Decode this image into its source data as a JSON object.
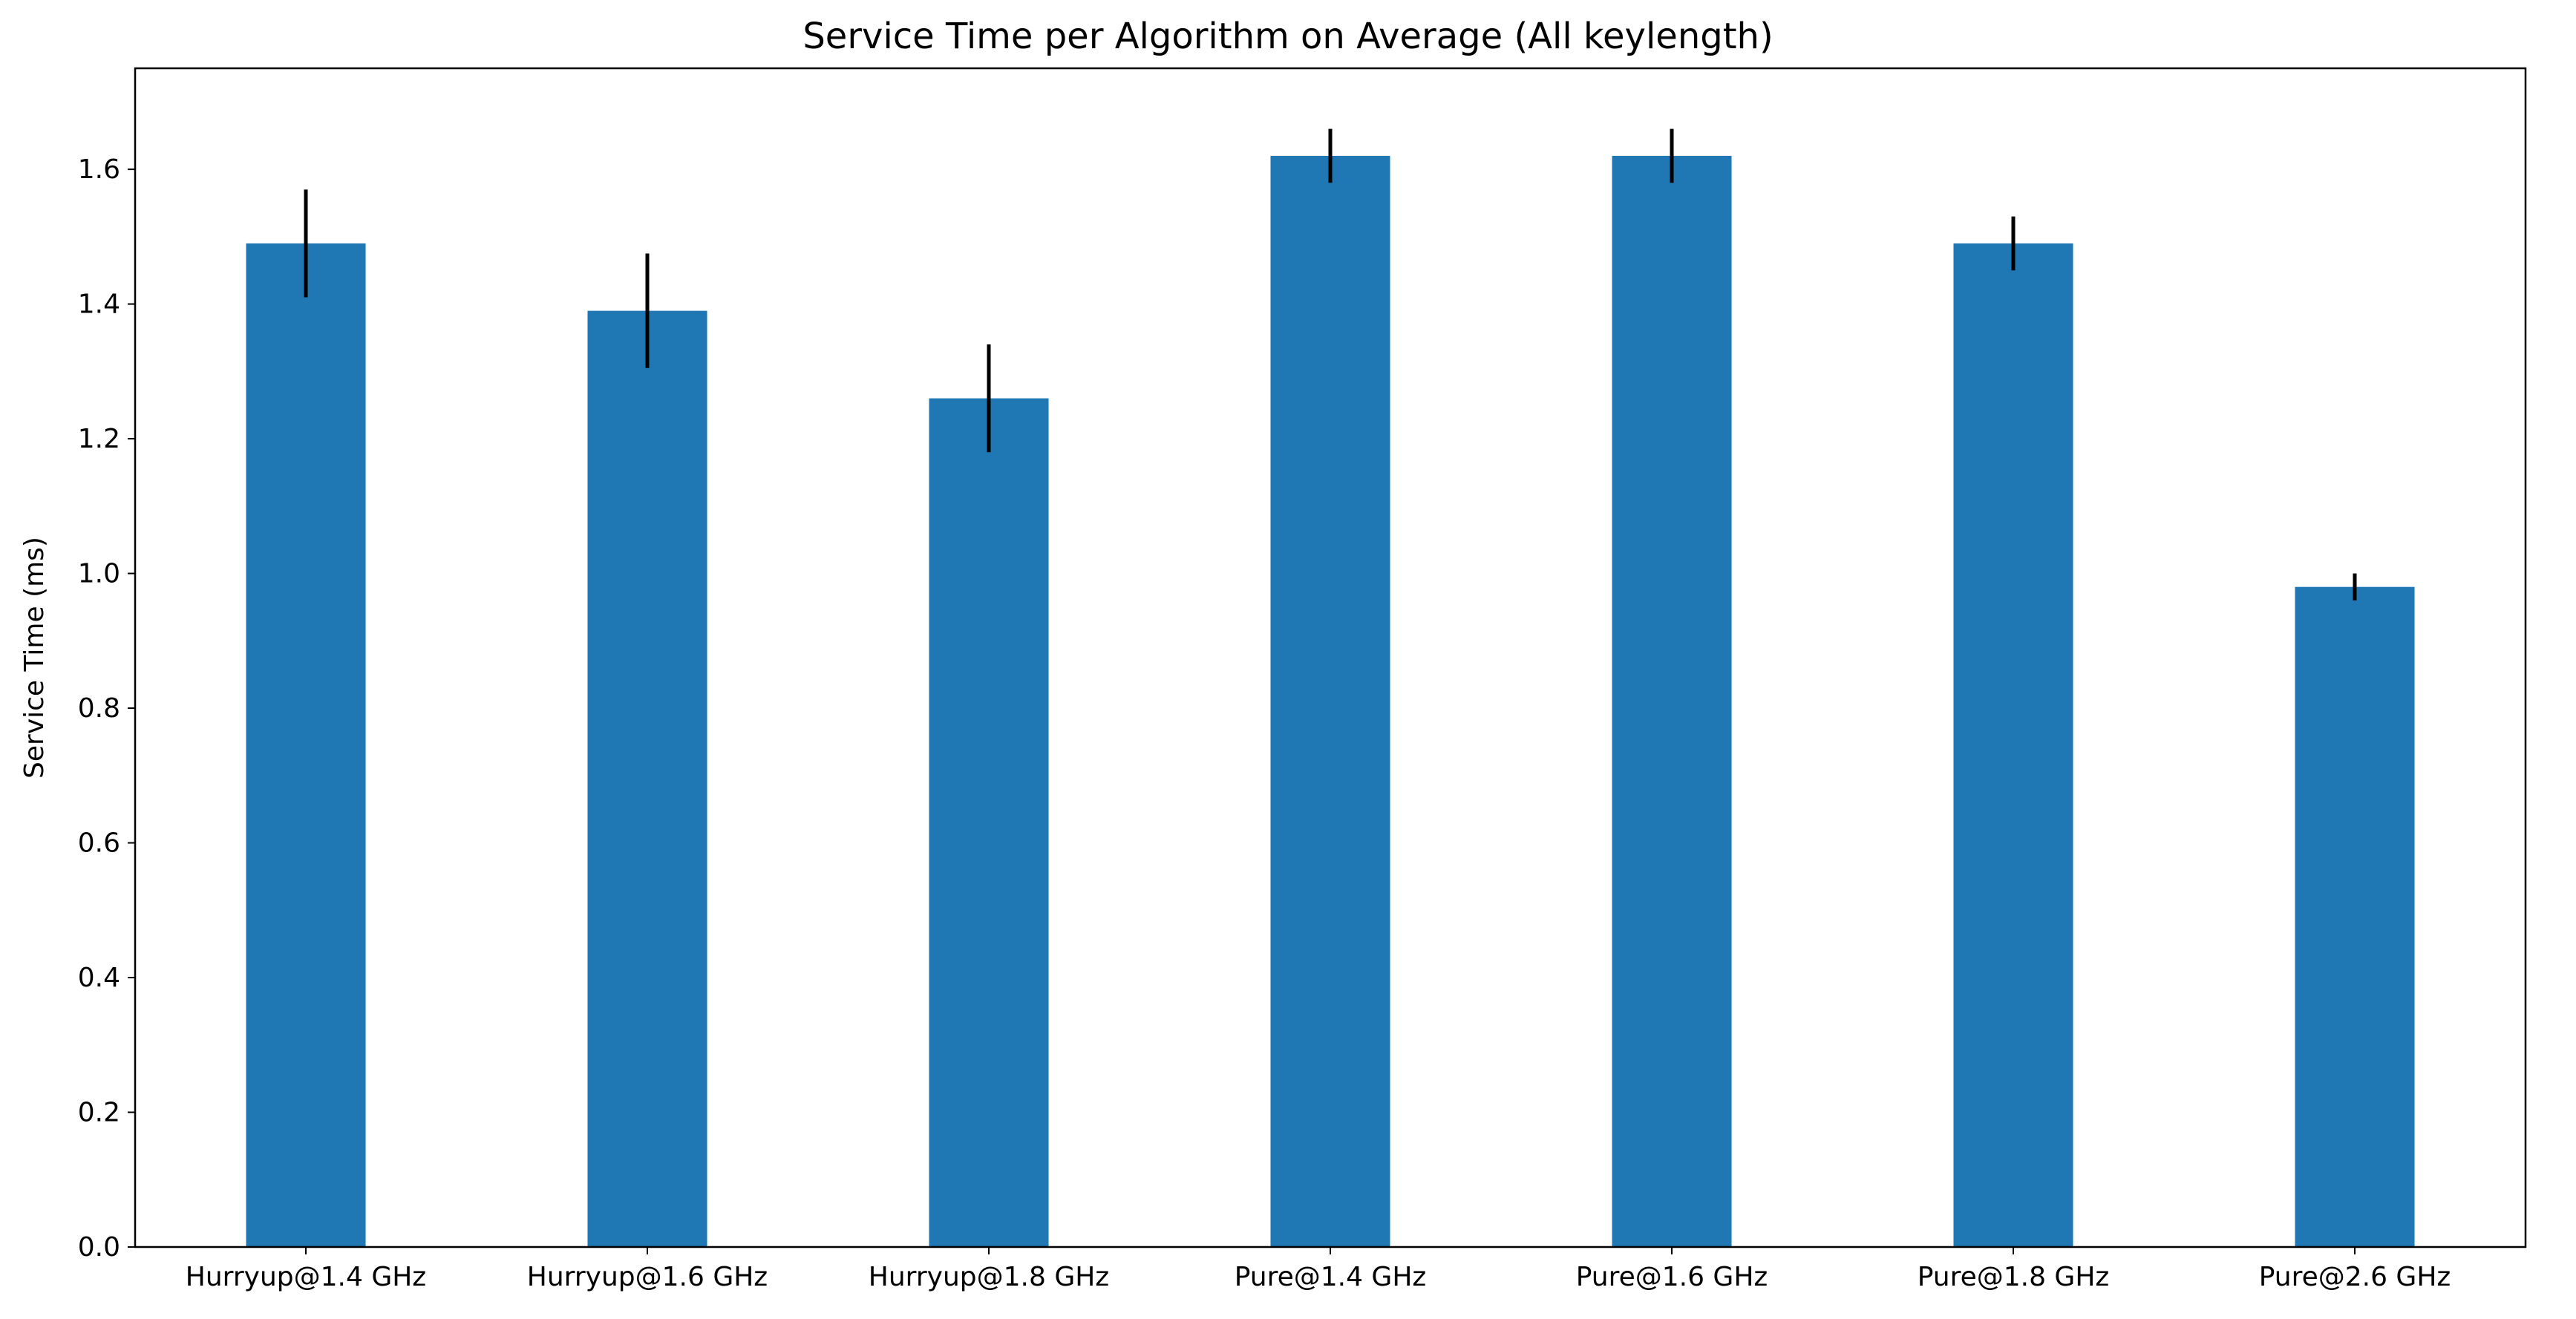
{
  "chart_data": {
    "type": "bar",
    "title": "Service Time per Algorithm on Average (All keylength)",
    "xlabel": "",
    "ylabel": "Service Time (ms)",
    "categories": [
      "Hurryup@1.4 GHz",
      "Hurryup@1.6 GHz",
      "Hurryup@1.8 GHz",
      "Pure@1.4 GHz",
      "Pure@1.6 GHz",
      "Pure@1.8 GHz",
      "Pure@2.6 GHz"
    ],
    "values": [
      1.49,
      1.39,
      1.26,
      1.62,
      1.62,
      1.49,
      0.98
    ],
    "error": [
      0.08,
      0.085,
      0.08,
      0.04,
      0.04,
      0.04,
      0.02
    ],
    "ylim": [
      0,
      1.75
    ],
    "yticks": [
      0.0,
      0.2,
      0.4,
      0.6,
      0.8,
      1.0,
      1.2,
      1.4,
      1.6
    ],
    "ytick_labels": [
      "0.0",
      "0.2",
      "0.4",
      "0.6",
      "0.8",
      "1.0",
      "1.2",
      "1.4",
      "1.6"
    ],
    "grid": false,
    "colors": {
      "bar": "#1f77b4",
      "error_bar": "#000000",
      "axis": "#000000",
      "background": "#ffffff"
    }
  }
}
